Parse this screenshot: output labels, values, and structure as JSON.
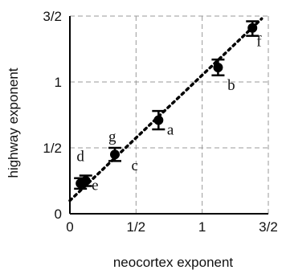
{
  "chart_data": {
    "type": "scatter",
    "title": "",
    "xlabel": "neocortex exponent",
    "ylabel": "highway exponent",
    "xlim": [
      0,
      1.5
    ],
    "ylim": [
      0,
      1.5
    ],
    "x_ticks": [
      {
        "value": 0,
        "label": "0"
      },
      {
        "value": 0.5,
        "label": "1/2"
      },
      {
        "value": 1,
        "label": "1"
      },
      {
        "value": 1.5,
        "label": "3/2"
      }
    ],
    "y_ticks": [
      {
        "value": 0,
        "label": "0"
      },
      {
        "value": 0.5,
        "label": "1/2"
      },
      {
        "value": 1,
        "label": "1"
      },
      {
        "value": 1.5,
        "label": "3/2"
      }
    ],
    "grid": true,
    "points": [
      {
        "label": "e",
        "x": 0.08,
        "y": 0.23,
        "err_low": 0.04,
        "err_high": 0.04
      },
      {
        "label": "d",
        "x": 0.12,
        "y": 0.25,
        "err_low": 0.04,
        "err_high": 0.04
      },
      {
        "label": "g",
        "x": 0.34,
        "y": 0.45,
        "err_low": 0.05,
        "err_high": 0.05
      },
      {
        "label": "a",
        "x": 0.67,
        "y": 0.71,
        "err_low": 0.07,
        "err_high": 0.07
      },
      {
        "label": "b",
        "x": 1.12,
        "y": 1.11,
        "err_low": 0.06,
        "err_high": 0.06
      },
      {
        "label": "f",
        "x": 1.38,
        "y": 1.41,
        "err_low": 0.06,
        "err_high": 0.05
      }
    ],
    "annotations": [
      {
        "text": "e",
        "x": 0.19,
        "y": 0.18
      },
      {
        "text": "d",
        "x": 0.08,
        "y": 0.4
      },
      {
        "text": "g",
        "x": 0.32,
        "y": 0.55
      },
      {
        "text": "c",
        "x": 0.49,
        "y": 0.33
      },
      {
        "text": "a",
        "x": 0.76,
        "y": 0.6
      },
      {
        "text": "b",
        "x": 1.22,
        "y": 0.94
      },
      {
        "text": "f",
        "x": 1.43,
        "y": 1.27
      }
    ],
    "fit_line": {
      "x": [
        0.0,
        1.45
      ],
      "y": [
        0.1,
        1.48
      ],
      "style": "dotted"
    }
  }
}
